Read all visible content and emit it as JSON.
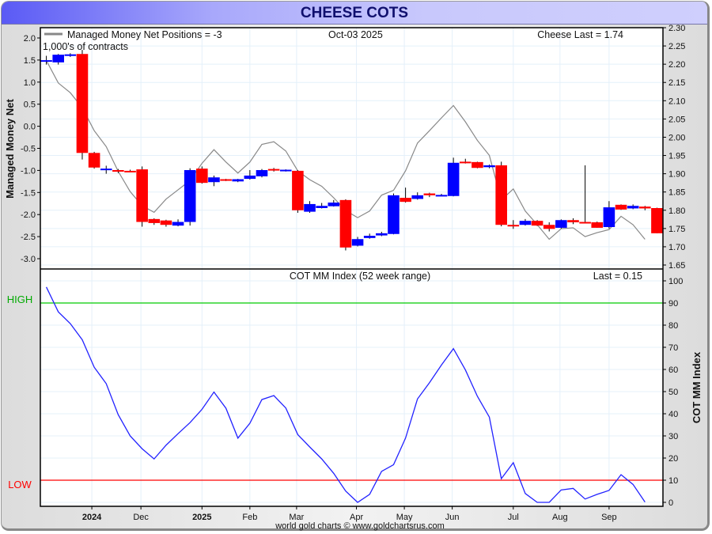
{
  "header": {
    "title": "CHEESE COTS"
  },
  "footer": "world gold charts © www.goldchartsrus.com",
  "colors": {
    "up": "#0000ff",
    "down": "#ff0000",
    "mm_line": "#888888",
    "index_line": "#2222ff",
    "high": "#00cc00",
    "low": "#ff0000",
    "grid": "#e4f0fa"
  },
  "chart_data": [
    {
      "type": "candlestick+line",
      "legend": "Managed Money Net Positions = -3",
      "units": "1,000's of contracts",
      "date_label": "Oct-03  2025",
      "last_label": "Cheese Last = 1.74",
      "ylabel_left": "Managed Money Net",
      "left_ylim": [
        -3.25,
        2.2
      ],
      "left_ticks": [
        "2.0",
        "1.5",
        "1.0",
        "0.5",
        "0.0",
        "-0.5",
        "-1.0",
        "-1.5",
        "-2.0",
        "-2.5",
        "-3.0"
      ],
      "right_ylim": [
        1.65,
        2.3
      ],
      "right_ticks": [
        "2.30",
        "2.25",
        "2.20",
        "2.15",
        "2.10",
        "2.05",
        "2.00",
        "1.95",
        "1.90",
        "1.85",
        "1.80",
        "1.75",
        "1.70",
        "1.65"
      ],
      "candles_ohlc": [
        [
          2.209,
          2.223,
          2.199,
          2.211
        ],
        [
          2.205,
          2.228,
          2.199,
          2.226
        ],
        [
          2.224,
          2.23,
          2.22,
          2.227
        ],
        [
          2.228,
          2.239,
          1.939,
          1.957
        ],
        [
          1.957,
          1.96,
          1.914,
          1.917
        ],
        [
          1.91,
          1.922,
          1.9,
          1.914
        ],
        [
          1.91,
          1.913,
          1.902,
          1.906
        ],
        [
          1.908,
          1.911,
          1.905,
          1.906
        ],
        [
          1.912,
          1.92,
          1.755,
          1.768
        ],
        [
          1.776,
          1.778,
          1.76,
          1.765
        ],
        [
          1.772,
          1.774,
          1.755,
          1.76
        ],
        [
          1.758,
          1.775,
          1.756,
          1.768
        ],
        [
          1.768,
          1.915,
          1.758,
          1.91
        ],
        [
          1.914,
          1.92,
          1.873,
          1.875
        ],
        [
          1.877,
          1.895,
          1.866,
          1.89
        ],
        [
          1.885,
          1.886,
          1.88,
          1.882
        ],
        [
          1.879,
          1.886,
          1.877,
          1.885
        ],
        [
          1.886,
          1.91,
          1.884,
          1.895
        ],
        [
          1.893,
          1.913,
          1.89,
          1.91
        ],
        [
          1.913,
          1.916,
          1.906,
          1.91
        ],
        [
          1.909,
          1.912,
          1.906,
          1.911
        ],
        [
          1.908,
          1.91,
          1.793,
          1.8
        ],
        [
          1.796,
          1.825,
          1.793,
          1.817
        ],
        [
          1.806,
          1.82,
          1.805,
          1.812
        ],
        [
          1.811,
          1.828,
          1.81,
          1.821
        ],
        [
          1.828,
          1.83,
          1.69,
          1.698
        ],
        [
          1.703,
          1.727,
          1.701,
          1.721
        ],
        [
          1.724,
          1.736,
          1.722,
          1.73
        ],
        [
          1.731,
          1.741,
          1.729,
          1.737
        ],
        [
          1.735,
          1.846,
          1.734,
          1.841
        ],
        [
          1.834,
          1.862,
          1.821,
          1.823
        ],
        [
          1.831,
          1.849,
          1.829,
          1.841
        ],
        [
          1.846,
          1.848,
          1.836,
          1.841
        ],
        [
          1.841,
          1.845,
          1.84,
          1.842
        ],
        [
          1.839,
          1.944,
          1.838,
          1.93
        ],
        [
          1.933,
          1.941,
          1.928,
          1.93
        ],
        [
          1.932,
          1.933,
          1.915,
          1.916
        ],
        [
          1.918,
          1.925,
          1.915,
          1.923
        ],
        [
          1.923,
          1.933,
          1.756,
          1.76
        ],
        [
          1.76,
          1.773,
          1.749,
          1.757
        ],
        [
          1.76,
          1.776,
          1.758,
          1.771
        ],
        [
          1.771,
          1.773,
          1.757,
          1.758
        ],
        [
          1.76,
          1.767,
          1.742,
          1.749
        ],
        [
          1.752,
          1.775,
          1.75,
          1.773
        ],
        [
          1.773,
          1.778,
          1.762,
          1.767
        ],
        [
          1.768,
          1.923,
          1.764,
          1.764
        ],
        [
          1.767,
          1.769,
          1.752,
          1.752
        ],
        [
          1.754,
          1.825,
          1.75,
          1.808
        ],
        [
          1.815,
          1.816,
          1.801,
          1.802
        ],
        [
          1.805,
          1.816,
          1.803,
          1.812
        ],
        [
          1.81,
          1.812,
          1.8,
          1.805
        ],
        [
          1.806,
          1.807,
          1.737,
          1.737
        ]
      ],
      "mm_net": [
        1.49,
        0.98,
        0.76,
        0.42,
        -0.1,
        -0.46,
        -1.02,
        -1.48,
        -1.8,
        -1.95,
        -1.65,
        -1.44,
        -1.23,
        -0.84,
        -0.53,
        -0.81,
        -1.06,
        -0.81,
        -0.41,
        -0.35,
        -0.56,
        -1.01,
        -1.21,
        -1.36,
        -1.62,
        -1.91,
        -2.07,
        -1.92,
        -1.56,
        -1.45,
        -1.01,
        -0.38,
        -0.1,
        0.19,
        0.47,
        0.1,
        -0.32,
        -0.66,
        -1.67,
        -1.42,
        -1.92,
        -2.23,
        -2.56,
        -2.32,
        -2.3,
        -2.5,
        -2.41,
        -2.34,
        -2.04,
        -2.23,
        -2.56
      ]
    },
    {
      "type": "line",
      "title": "COT MM Index (52 week range)",
      "last_label": "Last = 0.15",
      "ylabel_right": "COT MM Index",
      "ylim": [
        0,
        100
      ],
      "ticks": [
        "100",
        "90",
        "80",
        "70",
        "60",
        "50",
        "40",
        "30",
        "20",
        "10",
        "0"
      ],
      "high_label": "HIGH",
      "high_value": 90,
      "low_label": "LOW",
      "low_value": 10,
      "values": [
        97.2,
        86,
        80.7,
        73.4,
        61,
        53.6,
        39.6,
        30,
        24.2,
        19.6,
        25.8,
        31,
        36,
        42,
        49.8,
        42.5,
        29,
        35.7,
        46.4,
        48.2,
        42.6,
        30.6,
        25,
        19.6,
        13.1,
        5.1,
        0,
        3.6,
        14,
        17,
        29,
        46.7,
        54,
        62,
        69.4,
        59.8,
        47.9,
        38.5,
        10.7,
        17.9,
        4,
        0,
        0,
        5.6,
        6.3,
        1.5,
        3.6,
        5.4,
        12.5,
        8.1,
        0.15
      ]
    }
  ],
  "xaxis": {
    "labels": [
      {
        "text": "2024",
        "week": 4.3,
        "bold": true
      },
      {
        "text": "Dec",
        "week": 8.4,
        "bold": false
      },
      {
        "text": "2025",
        "week": 13.5,
        "bold": true
      },
      {
        "text": "Feb",
        "week": 17.5,
        "bold": false
      },
      {
        "text": "Mar",
        "week": 21.4,
        "bold": false
      },
      {
        "text": "Apr",
        "week": 26.4,
        "bold": false
      },
      {
        "text": "May",
        "week": 30.4,
        "bold": false
      },
      {
        "text": "Jun",
        "week": 34.4,
        "bold": false
      },
      {
        "text": "Jul",
        "week": 39.5,
        "bold": false
      },
      {
        "text": "Aug",
        "week": 43.4,
        "bold": false
      },
      {
        "text": "Sep",
        "week": 47.5,
        "bold": false
      }
    ]
  }
}
